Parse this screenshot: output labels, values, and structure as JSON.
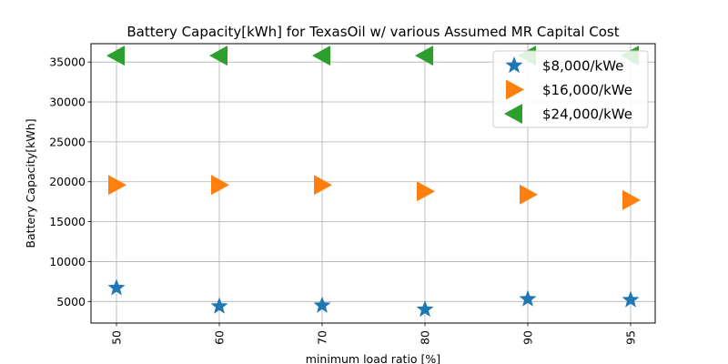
{
  "chart_data": {
    "type": "scatter",
    "title": "Battery Capacity[kWh] for TexasOil w/ various Assumed MR Capital Cost",
    "xlabel": "minimum load ratio [%]",
    "ylabel": "Battery Capacity[kWh]",
    "categories": [
      "50",
      "60",
      "70",
      "80",
      "90",
      "95"
    ],
    "ylim": [
      2300,
      37300
    ],
    "yticks": [
      5000,
      10000,
      15000,
      20000,
      25000,
      30000,
      35000
    ],
    "ytick_labels": [
      "5000",
      "10000",
      "15000",
      "20000",
      "25000",
      "30000",
      "35000"
    ],
    "grid": true,
    "legend_position": "top-right",
    "series": [
      {
        "name": "$8,000/kWe",
        "marker": "star",
        "color": "#1f77b4",
        "values": [
          6700,
          4400,
          4500,
          4000,
          5300,
          5200
        ]
      },
      {
        "name": "$16,000/kWe",
        "marker": "triangle-right",
        "color": "#ff7f0e",
        "values": [
          19600,
          19600,
          19600,
          18800,
          18400,
          17700
        ]
      },
      {
        "name": "$24,000/kWe",
        "marker": "triangle-left",
        "color": "#2ca02c",
        "values": [
          35800,
          35800,
          35800,
          35800,
          35800,
          35800
        ]
      }
    ]
  }
}
